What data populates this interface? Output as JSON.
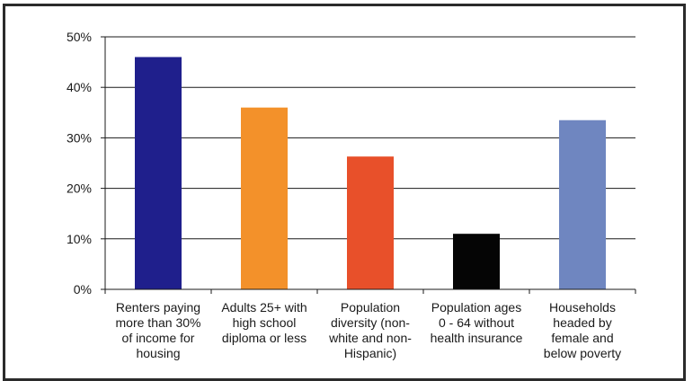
{
  "chart_data": {
    "type": "bar",
    "categories": [
      [
        "Renters paying",
        "more than 30%",
        "of income for",
        "housing"
      ],
      [
        "Adults 25+ with",
        "high school",
        "diploma or less"
      ],
      [
        "Population",
        "diversity (non-",
        "white and non-",
        "Hispanic)"
      ],
      [
        "Population ages",
        "0 - 64 without",
        "health insurance"
      ],
      [
        "Households",
        "headed by",
        "female and",
        "below poverty"
      ]
    ],
    "values": [
      46,
      36,
      26.3,
      11,
      33.5
    ],
    "colors": [
      "#1f1f8c",
      "#f3912a",
      "#e8502a",
      "#050505",
      "#6f86c0"
    ],
    "ylim": [
      0,
      50
    ],
    "yticks": [
      0,
      10,
      20,
      30,
      40,
      50
    ],
    "ytick_labels": [
      "0%",
      "10%",
      "20%",
      "30%",
      "40%",
      "50%"
    ],
    "grid": true,
    "title": "",
    "xlabel": "",
    "ylabel": ""
  }
}
